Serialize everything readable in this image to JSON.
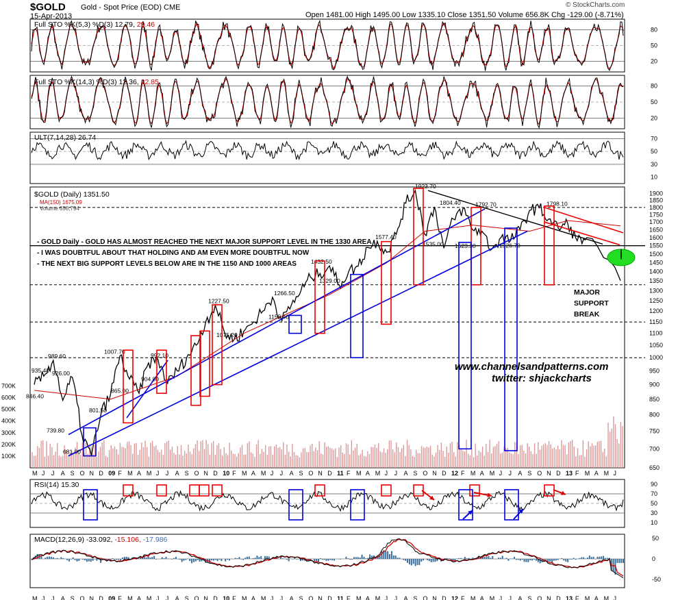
{
  "header": {
    "symbol": "$GOLD",
    "name": "Gold - Spot Price (EOD)",
    "exchange": "CME",
    "date": "15-Apr-2013",
    "ohlc": "Open 1481.00  High 1495.00  Low 1335.10  Close 1351.50  Volume 656.8K  Chg -129.00 (-8.71%)",
    "brand": "© StockCharts.com"
  },
  "panels": {
    "sto1": {
      "label": "Full STO %K(5,3) %D(3) 12.79,",
      "value": "29.46",
      "ticks": [
        "80",
        "50",
        "20"
      ]
    },
    "sto2": {
      "label": "Full STO %K(14,3) %D(3) 12.36,",
      "value": "22.85",
      "ticks": [
        "80",
        "50",
        "20"
      ]
    },
    "ult": {
      "label": "ULT(7,14,28) 26.74",
      "ticks": [
        "70",
        "50",
        "30",
        "10"
      ]
    },
    "price": {
      "label": "$GOLD (Daily) 1351.50",
      "ma_label": "MA(150) 1675.09",
      "vol_label": "Volume 656,794",
      "ticks": [
        "1900",
        "1850",
        "1800",
        "1750",
        "1700",
        "1650",
        "1600",
        "1550",
        "1500",
        "1450",
        "1400",
        "1350",
        "1300",
        "1250",
        "1200",
        "1150",
        "1100",
        "1050",
        "1000",
        "950",
        "900",
        "850",
        "800",
        "750",
        "700",
        "650"
      ],
      "vol_ticks": [
        "700K",
        "600K",
        "500K",
        "400K",
        "300K",
        "200K",
        "100K"
      ]
    },
    "rsi": {
      "label": "RSI(14) 15.30",
      "ticks": [
        "90",
        "70",
        "50",
        "30",
        "10"
      ]
    },
    "macd": {
      "label": "MACD(12,26,9) -33.092,",
      "value1": "-15.106,",
      "value2": "-17.986",
      "ticks": [
        "50",
        "0",
        "-50"
      ]
    }
  },
  "annotations": {
    "notes": [
      "- GOLD Daily - GOLD HAS ALMOST REACHED THE NEXT MAJOR SUPPORT LEVEL IN THE 1330 AREA",
      "- I WAS DOUBTFUL ABOUT THAT HOLDING AND AM EVEN MORE DOUBTFUL NOW",
      "- THE NEXT BIG SUPPORT LEVELS BELOW ARE IN THE 1150 AND 1000 AREAS"
    ],
    "support_break": [
      "MAJOR",
      "SUPPORT",
      "BREAK"
    ],
    "watermark1": "www.channelsandpatterns.com",
    "watermark2": "twitter: shjackcharts",
    "price_labels": [
      "989.60",
      "935.40",
      "926.00",
      "846.40",
      "739.80",
      "681.00",
      "1007.70",
      "801.50",
      "865.00",
      "992.10",
      "904.80",
      "1227.50",
      "1075.20",
      "1266.50",
      "1155.40",
      "1432.50",
      "1329.00",
      "1577.40",
      "1923.70",
      "1804.40",
      "1792.70",
      "1535.00",
      "1523.30",
      "1798.10",
      "1526.70"
    ]
  },
  "x_axis": [
    "M",
    "J",
    "J",
    "A",
    "S",
    "O",
    "N",
    "D",
    "09",
    "F",
    "M",
    "A",
    "M",
    "J",
    "J",
    "A",
    "S",
    "O",
    "N",
    "D",
    "10",
    "F",
    "M",
    "A",
    "M",
    "J",
    "J",
    "A",
    "S",
    "O",
    "N",
    "D",
    "11",
    "F",
    "M",
    "A",
    "M",
    "J",
    "J",
    "A",
    "S",
    "O",
    "N",
    "D",
    "12",
    "F",
    "M",
    "A",
    "M",
    "J",
    "J",
    "A",
    "S",
    "O",
    "N",
    "D",
    "13",
    "F",
    "M",
    "A",
    "M",
    "J"
  ],
  "colors": {
    "kline": "#000000",
    "dline": "#cc0000",
    "ma": "#cc0000",
    "channel": "#0000dd",
    "box_red": "#ee0000",
    "box_blue": "#0000dd",
    "volume": "#d99",
    "support_oval": "#22dd22",
    "macd_hist": "#3a6f9c"
  },
  "chart_data": {
    "type": "line",
    "title": "$GOLD (Daily) 1351.50",
    "x_range": [
      "2008-05",
      "2013-06"
    ],
    "ylim": [
      650,
      1950
    ],
    "scale": "log",
    "series": [
      {
        "name": "$GOLD (Daily)",
        "points": [
          [
            "2008-05",
            900
          ],
          [
            "2008-06",
            930
          ],
          [
            "2008-07",
            989.6
          ],
          [
            "2008-08",
            846.4
          ],
          [
            "2008-09",
            926.0
          ],
          [
            "2008-10",
            739.8
          ],
          [
            "2008-11",
            681.0
          ],
          [
            "2008-12",
            801.5
          ],
          [
            "2009-01",
            865.0
          ],
          [
            "2009-02",
            1007.7
          ],
          [
            "2009-03",
            920
          ],
          [
            "2009-04",
            870
          ],
          [
            "2009-05",
            980
          ],
          [
            "2009-06",
            992.1
          ],
          [
            "2009-07",
            904.8
          ],
          [
            "2009-08",
            950
          ],
          [
            "2009-09",
            1000
          ],
          [
            "2009-10",
            1050
          ],
          [
            "2009-11",
            1150
          ],
          [
            "2009-12",
            1227.5
          ],
          [
            "2010-01",
            1100
          ],
          [
            "2010-02",
            1075.2
          ],
          [
            "2010-03",
            1110
          ],
          [
            "2010-04",
            1150
          ],
          [
            "2010-05",
            1200
          ],
          [
            "2010-06",
            1266.5
          ],
          [
            "2010-07",
            1155.4
          ],
          [
            "2010-08",
            1230
          ],
          [
            "2010-09",
            1300
          ],
          [
            "2010-10",
            1370
          ],
          [
            "2010-11",
            1390
          ],
          [
            "2010-12",
            1432.5
          ],
          [
            "2011-01",
            1329.0
          ],
          [
            "2011-02",
            1400
          ],
          [
            "2011-03",
            1430
          ],
          [
            "2011-04",
            1540
          ],
          [
            "2011-05",
            1577.4
          ],
          [
            "2011-06",
            1510
          ],
          [
            "2011-07",
            1620
          ],
          [
            "2011-08",
            1830
          ],
          [
            "2011-09",
            1923.7
          ],
          [
            "2011-10",
            1620
          ],
          [
            "2011-11",
            1804.4
          ],
          [
            "2011-12",
            1535.0
          ],
          [
            "2012-01",
            1720
          ],
          [
            "2012-02",
            1792.7
          ],
          [
            "2012-03",
            1650
          ],
          [
            "2012-04",
            1640
          ],
          [
            "2012-05",
            1526.7
          ],
          [
            "2012-06",
            1600
          ],
          [
            "2012-07",
            1580
          ],
          [
            "2012-08",
            1650
          ],
          [
            "2012-09",
            1780
          ],
          [
            "2012-10",
            1798.1
          ],
          [
            "2012-11",
            1720
          ],
          [
            "2012-12",
            1660
          ],
          [
            "2013-01",
            1690
          ],
          [
            "2013-02",
            1580
          ],
          [
            "2013-03",
            1600
          ],
          [
            "2013-04",
            1351.5
          ]
        ]
      }
    ]
  }
}
